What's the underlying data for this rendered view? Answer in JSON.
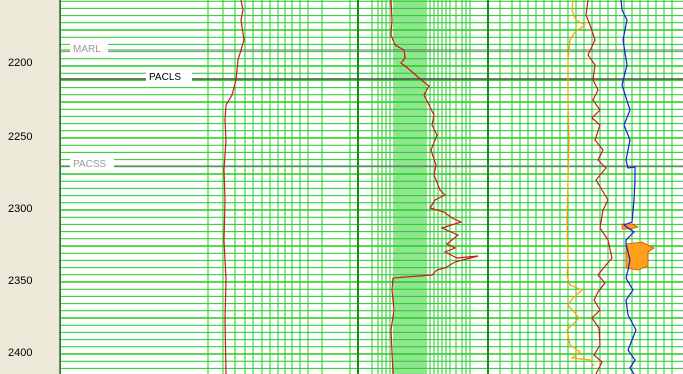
{
  "depth_axis": {
    "labels": [
      "2200",
      "2250",
      "2300",
      "2350",
      "2400"
    ]
  },
  "markers": [
    {
      "name": "MARL",
      "depth": 2190,
      "color": "#9a9a9a"
    },
    {
      "name": "PACLS",
      "depth": 2210,
      "color": "#000000"
    },
    {
      "name": "PACSS",
      "depth": 2270,
      "color": "#9a9a9a"
    }
  ],
  "colors": {
    "grid": "#22cc22",
    "track_border": "#1a8a1a",
    "curve_red": "#d01818",
    "curve_orange": "#ffa000",
    "curve_blue": "#1a1ad8",
    "shade_fill": "#ff9f1a"
  },
  "depth_range": [
    2161,
    2413
  ]
}
